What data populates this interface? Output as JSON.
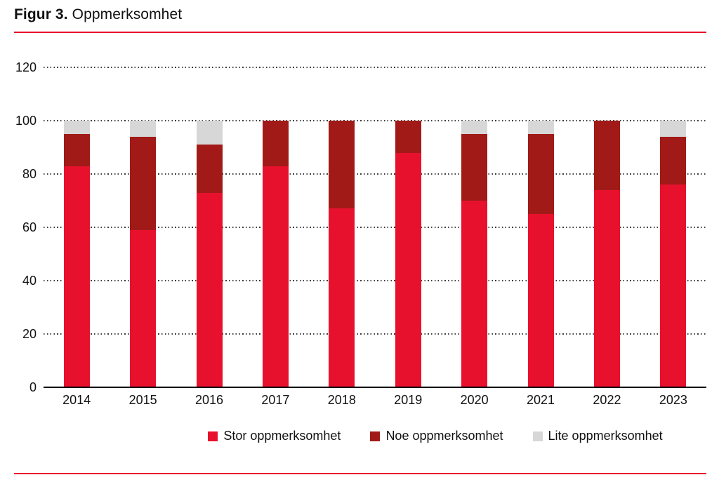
{
  "header": {
    "title_prefix": "Figur 3.",
    "title_text": "Oppmerksomhet"
  },
  "colors": {
    "accent_rule": "#e8112d",
    "stor": "#e8112d",
    "noe": "#a11a17",
    "lite": "#d7d7d7",
    "axis": "#000000"
  },
  "chart_data": {
    "type": "bar",
    "stacked": true,
    "title": "Figur 3. Oppmerksomhet",
    "categories": [
      "2014",
      "2015",
      "2016",
      "2017",
      "2018",
      "2019",
      "2020",
      "2021",
      "2022",
      "2023"
    ],
    "series": [
      {
        "name": "Stor oppmerksomhet",
        "color": "#e8112d",
        "values": [
          83,
          59,
          73,
          83,
          67,
          88,
          70,
          65,
          74,
          76
        ]
      },
      {
        "name": "Noe oppmerksomhet",
        "color": "#a11a17",
        "values": [
          12,
          35,
          18,
          17,
          33,
          12,
          25,
          30,
          26,
          18
        ]
      },
      {
        "name": "Lite oppmerksomhet",
        "color": "#d7d7d7",
        "values": [
          5,
          6,
          9,
          0,
          0,
          0,
          5,
          5,
          0,
          6
        ]
      }
    ],
    "xlabel": "",
    "ylabel": "",
    "ylim": [
      0,
      120
    ],
    "yticks": [
      0,
      20,
      40,
      60,
      80,
      100,
      120
    ],
    "grid": "dotted-horizontal",
    "legend_position": "bottom"
  }
}
